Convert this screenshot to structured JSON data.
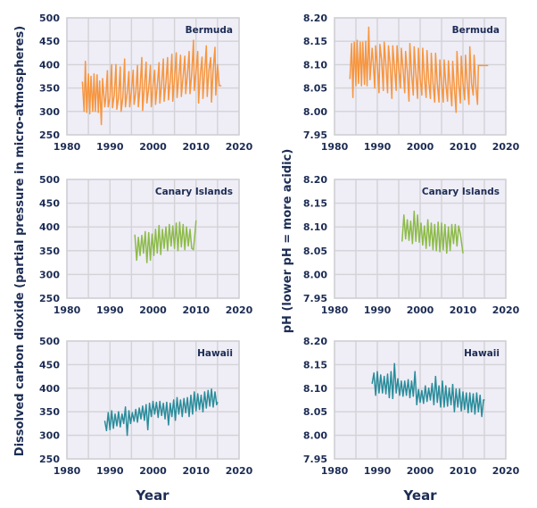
{
  "chart_data": {
    "type": "line",
    "title": "",
    "xlabel": "Year",
    "x_tick_labels": [
      "1980",
      "1990",
      "2000",
      "2010",
      "2020"
    ],
    "xlim": [
      1980,
      2020
    ],
    "grid": true,
    "legend": "none",
    "panel_columns": [
      {
        "ylabel": "Dissolved carbon dioxide (partial pressure in micro-atmospheres)",
        "ylim": [
          250,
          500
        ],
        "y_tick_labels": [
          "250",
          "300",
          "350",
          "400",
          "450",
          "500"
        ],
        "y_ticks": [
          250,
          300,
          350,
          400,
          450,
          500
        ]
      },
      {
        "ylabel": "pH (lower pH = more acidic)",
        "ylim": [
          7.95,
          8.2
        ],
        "y_tick_labels": [
          "7.95",
          "8.00",
          "8.05",
          "8.10",
          "8.15",
          "8.20"
        ],
        "y_ticks": [
          7.95,
          8.0,
          8.05,
          8.1,
          8.15,
          8.2
        ]
      }
    ],
    "panels": [
      {
        "label": "Bermuda",
        "column": 0,
        "row": 0,
        "color": "#f7963f",
        "x": [
          1983.6,
          1984.0,
          1984.3,
          1984.6,
          1985.0,
          1985.3,
          1985.6,
          1986.0,
          1986.3,
          1986.6,
          1987.0,
          1987.3,
          1987.6,
          1988.0,
          1988.3,
          1988.8,
          1989.0,
          1989.4,
          1989.6,
          1990.0,
          1990.4,
          1990.6,
          1991.0,
          1991.4,
          1991.6,
          1992.0,
          1992.4,
          1992.6,
          1993.0,
          1993.4,
          1993.6,
          1994.0,
          1994.4,
          1994.6,
          1995.0,
          1995.4,
          1995.6,
          1996.0,
          1996.4,
          1996.6,
          1997.0,
          1997.4,
          1997.6,
          1998.0,
          1998.4,
          1998.6,
          1999.0,
          1999.4,
          1999.6,
          2000.0,
          2000.4,
          2000.6,
          2001.0,
          2001.4,
          2001.6,
          2002.0,
          2002.4,
          2002.6,
          2003.0,
          2003.4,
          2003.6,
          2004.0,
          2004.4,
          2004.6,
          2005.0,
          2005.4,
          2005.6,
          2006.0,
          2006.4,
          2006.6,
          2007.0,
          2007.4,
          2007.6,
          2008.0,
          2008.4,
          2008.6,
          2009.0,
          2009.4,
          2009.6,
          2010.0,
          2010.4,
          2010.6,
          2011.0,
          2011.4,
          2011.6,
          2012.0,
          2012.4,
          2012.6,
          2013.0,
          2013.4,
          2013.6,
          2014.0,
          2014.4,
          2014.6,
          2015.0,
          2015.4,
          2015.8
        ],
        "y": [
          363,
          300,
          407,
          298,
          380,
          295,
          375,
          300,
          380,
          300,
          378,
          298,
          365,
          272,
          370,
          310,
          325,
          387,
          310,
          330,
          400,
          308,
          335,
          400,
          305,
          330,
          395,
          300,
          330,
          412,
          310,
          340,
          385,
          310,
          345,
          388,
          315,
          340,
          398,
          310,
          350,
          415,
          302,
          355,
          405,
          318,
          350,
          398,
          310,
          355,
          388,
          315,
          355,
          404,
          318,
          360,
          412,
          322,
          362,
          415,
          325,
          365,
          422,
          322,
          370,
          425,
          330,
          372,
          420,
          332,
          375,
          418,
          338,
          378,
          428,
          338,
          380,
          452,
          345,
          385,
          428,
          318,
          380,
          416,
          328,
          385,
          440,
          332,
          388,
          415,
          320,
          390,
          437,
          335,
          400,
          355,
          355
        ],
        "y_unit": "micro-atmospheres"
      },
      {
        "label": "Canary Islands",
        "column": 0,
        "row": 1,
        "color": "#8dbb4a",
        "x": [
          1995.8,
          1996.2,
          1996.6,
          1997.0,
          1997.4,
          1997.8,
          1998.2,
          1998.6,
          1999.0,
          1999.4,
          1999.8,
          2000.2,
          2000.6,
          2001.0,
          2001.4,
          2001.8,
          2002.2,
          2002.6,
          2003.0,
          2003.4,
          2003.8,
          2004.2,
          2004.6,
          2005.0,
          2005.4,
          2005.8,
          2006.2,
          2006.6,
          2007.0,
          2007.4,
          2007.8,
          2008.2,
          2008.6,
          2009.0,
          2009.4,
          2010.0
        ],
        "y": [
          383,
          330,
          378,
          340,
          382,
          345,
          390,
          325,
          388,
          330,
          385,
          340,
          395,
          345,
          403,
          342,
          395,
          355,
          400,
          350,
          405,
          360,
          402,
          355,
          408,
          350,
          410,
          358,
          405,
          352,
          400,
          360,
          395,
          355,
          352,
          413
        ],
        "y_unit": "micro-atmospheres"
      },
      {
        "label": "Hawaii",
        "column": 0,
        "row": 2,
        "color": "#2a8c9b",
        "x": [
          1988.8,
          1989.2,
          1989.6,
          1990.0,
          1990.4,
          1990.8,
          1991.2,
          1991.6,
          1992.0,
          1992.4,
          1992.8,
          1993.2,
          1993.6,
          1994.0,
          1994.4,
          1994.8,
          1995.2,
          1995.6,
          1996.0,
          1996.4,
          1996.8,
          1997.2,
          1997.6,
          1998.0,
          1998.4,
          1998.8,
          1999.2,
          1999.6,
          2000.0,
          2000.4,
          2000.8,
          2001.2,
          2001.6,
          2002.0,
          2002.4,
          2002.8,
          2003.2,
          2003.6,
          2004.0,
          2004.4,
          2004.8,
          2005.2,
          2005.6,
          2006.0,
          2006.4,
          2006.8,
          2007.2,
          2007.6,
          2008.0,
          2008.4,
          2008.8,
          2009.2,
          2009.6,
          2010.0,
          2010.4,
          2010.8,
          2011.2,
          2011.6,
          2012.0,
          2012.4,
          2012.8,
          2013.2,
          2013.6,
          2014.0,
          2014.4,
          2014.8,
          2015.0
        ],
        "y": [
          330,
          310,
          348,
          312,
          352,
          315,
          345,
          320,
          350,
          318,
          345,
          325,
          360,
          300,
          352,
          325,
          348,
          330,
          355,
          328,
          358,
          335,
          362,
          332,
          365,
          312,
          368,
          340,
          372,
          345,
          370,
          338,
          372,
          342,
          368,
          335,
          370,
          322,
          368,
          340,
          375,
          332,
          380,
          345,
          375,
          340,
          378,
          348,
          380,
          340,
          385,
          345,
          392,
          352,
          388,
          355,
          385,
          350,
          392,
          358,
          395,
          362,
          398,
          360,
          392,
          365,
          370
        ],
        "y_unit": "micro-atmospheres"
      },
      {
        "label": "Bermuda",
        "column": 1,
        "row": 0,
        "color": "#f7963f",
        "x": [
          1983.6,
          1984.0,
          1984.3,
          1984.6,
          1985.0,
          1985.3,
          1985.6,
          1986.0,
          1986.3,
          1986.6,
          1987.0,
          1987.3,
          1987.6,
          1988.0,
          1988.3,
          1988.8,
          1989.0,
          1989.4,
          1989.6,
          1990.0,
          1990.4,
          1990.6,
          1991.0,
          1991.4,
          1991.6,
          1992.0,
          1992.4,
          1992.6,
          1993.0,
          1993.4,
          1993.6,
          1994.0,
          1994.4,
          1994.6,
          1995.0,
          1995.4,
          1995.6,
          1996.0,
          1996.4,
          1996.6,
          1997.0,
          1997.4,
          1997.6,
          1998.0,
          1998.4,
          1998.6,
          1999.0,
          1999.4,
          1999.6,
          2000.0,
          2000.4,
          2000.6,
          2001.0,
          2001.4,
          2001.6,
          2002.0,
          2002.4,
          2002.6,
          2003.0,
          2003.4,
          2003.6,
          2004.0,
          2004.4,
          2004.6,
          2005.0,
          2005.4,
          2005.6,
          2006.0,
          2006.4,
          2006.6,
          2007.0,
          2007.4,
          2007.6,
          2008.0,
          2008.4,
          2008.6,
          2009.0,
          2009.4,
          2009.6,
          2010.0,
          2010.4,
          2010.6,
          2011.0,
          2011.4,
          2011.6,
          2012.0,
          2012.4,
          2012.6,
          2013.0,
          2013.4,
          2013.6,
          2014.0,
          2014.4,
          2014.6,
          2015.0,
          2015.4,
          2015.8
        ],
        "y": [
          8.07,
          8.145,
          8.03,
          8.148,
          8.055,
          8.152,
          8.06,
          8.148,
          8.055,
          8.148,
          8.058,
          8.15,
          8.055,
          8.18,
          8.068,
          8.135,
          8.11,
          8.05,
          8.14,
          8.1,
          8.04,
          8.143,
          8.11,
          8.045,
          8.148,
          8.1,
          8.04,
          8.14,
          8.1,
          8.028,
          8.14,
          8.095,
          8.045,
          8.14,
          8.09,
          8.05,
          8.135,
          8.09,
          8.04,
          8.128,
          8.085,
          8.022,
          8.145,
          8.08,
          8.035,
          8.138,
          8.08,
          8.028,
          8.135,
          8.07,
          8.035,
          8.135,
          8.07,
          8.03,
          8.13,
          8.065,
          8.028,
          8.124,
          8.06,
          8.02,
          8.124,
          8.06,
          8.02,
          8.11,
          8.06,
          8.02,
          8.11,
          8.058,
          8.022,
          8.108,
          8.055,
          8.012,
          8.107,
          8.05,
          7.998,
          8.128,
          8.06,
          8.018,
          8.118,
          8.06,
          8.025,
          8.12,
          8.06,
          8.015,
          8.138,
          8.06,
          8.035,
          8.12,
          8.055,
          8.015,
          8.098,
          8.098,
          8.098,
          8.098,
          8.098,
          8.098,
          8.098
        ],
        "y_unit": "pH"
      },
      {
        "label": "Canary Islands",
        "column": 1,
        "row": 1,
        "color": "#8dbb4a",
        "x": [
          1995.8,
          1996.2,
          1996.6,
          1997.0,
          1997.4,
          1997.8,
          1998.2,
          1998.6,
          1999.0,
          1999.4,
          1999.8,
          2000.2,
          2000.6,
          2001.0,
          2001.4,
          2001.8,
          2002.2,
          2002.6,
          2003.0,
          2003.4,
          2003.8,
          2004.2,
          2004.6,
          2005.0,
          2005.4,
          2005.8,
          2006.2,
          2006.6,
          2007.0,
          2007.4,
          2007.8,
          2008.2,
          2008.6,
          2009.0,
          2009.4,
          2010.0
        ],
        "y": [
          8.07,
          8.125,
          8.075,
          8.115,
          8.072,
          8.112,
          8.065,
          8.133,
          8.07,
          8.125,
          8.068,
          8.108,
          8.062,
          8.102,
          8.055,
          8.115,
          8.06,
          8.108,
          8.052,
          8.105,
          8.05,
          8.11,
          8.048,
          8.108,
          8.052,
          8.105,
          8.045,
          8.1,
          8.05,
          8.105,
          8.065,
          8.105,
          8.06,
          8.102,
          8.085,
          8.045
        ],
        "y_unit": "pH"
      },
      {
        "label": "Hawaii",
        "column": 1,
        "row": 2,
        "color": "#2a8c9b",
        "x": [
          1988.8,
          1989.2,
          1989.6,
          1990.0,
          1990.4,
          1990.8,
          1991.2,
          1991.6,
          1992.0,
          1992.4,
          1992.8,
          1993.2,
          1993.6,
          1994.0,
          1994.4,
          1994.8,
          1995.2,
          1995.6,
          1996.0,
          1996.4,
          1996.8,
          1997.2,
          1997.6,
          1998.0,
          1998.4,
          1998.8,
          1999.2,
          1999.6,
          2000.0,
          2000.4,
          2000.8,
          2001.2,
          2001.6,
          2002.0,
          2002.4,
          2002.8,
          2003.2,
          2003.6,
          2004.0,
          2004.4,
          2004.8,
          2005.2,
          2005.6,
          2006.0,
          2006.4,
          2006.8,
          2007.2,
          2007.6,
          2008.0,
          2008.4,
          2008.8,
          2009.2,
          2009.6,
          2010.0,
          2010.4,
          2010.8,
          2011.2,
          2011.6,
          2012.0,
          2012.4,
          2012.8,
          2013.2,
          2013.6,
          2014.0,
          2014.4,
          2014.8,
          2015.0
        ],
        "y": [
          8.11,
          8.132,
          8.085,
          8.135,
          8.09,
          8.128,
          8.09,
          8.125,
          8.088,
          8.13,
          8.08,
          8.135,
          8.078,
          8.152,
          8.09,
          8.12,
          8.085,
          8.115,
          8.083,
          8.115,
          8.085,
          8.118,
          8.08,
          8.115,
          8.083,
          8.135,
          8.065,
          8.097,
          8.07,
          8.095,
          8.068,
          8.105,
          8.072,
          8.1,
          8.075,
          8.11,
          8.065,
          8.125,
          8.07,
          8.105,
          8.06,
          8.115,
          8.06,
          8.105,
          8.062,
          8.1,
          8.065,
          8.108,
          8.05,
          8.098,
          8.06,
          8.098,
          8.052,
          8.092,
          8.055,
          8.09,
          8.048,
          8.09,
          8.05,
          8.088,
          8.045,
          8.09,
          8.05,
          8.085,
          8.04,
          8.075,
          8.075
        ],
        "y_unit": "pH"
      }
    ]
  }
}
